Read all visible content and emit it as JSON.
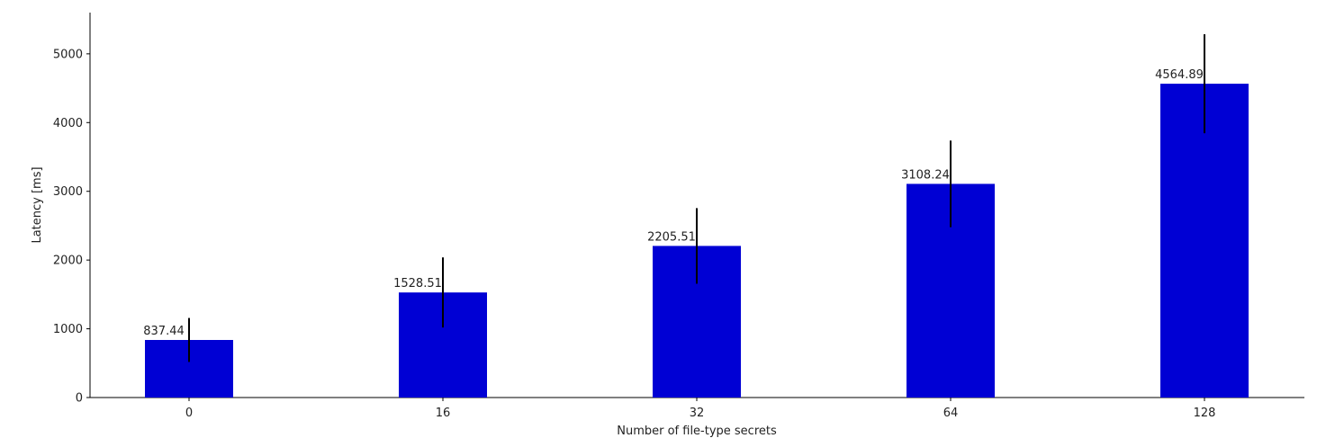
{
  "chart_data": {
    "type": "bar",
    "categories": [
      "0",
      "16",
      "32",
      "64",
      "128"
    ],
    "values": [
      837.44,
      1528.51,
      2205.51,
      3108.24,
      4564.89
    ],
    "error_bars": [
      320,
      510,
      550,
      630,
      720
    ],
    "data_labels": [
      "837.44",
      "1528.51",
      "2205.51",
      "3108.24",
      "4564.89"
    ],
    "xlabel": "Number of file-type secrets",
    "ylabel": "Latency [ms]",
    "ylim": [
      0,
      5600
    ],
    "yticks": [
      0,
      1000,
      2000,
      3000,
      4000,
      5000
    ],
    "grid": false,
    "bar_color": "#0000d4",
    "error_color": "#000000"
  }
}
